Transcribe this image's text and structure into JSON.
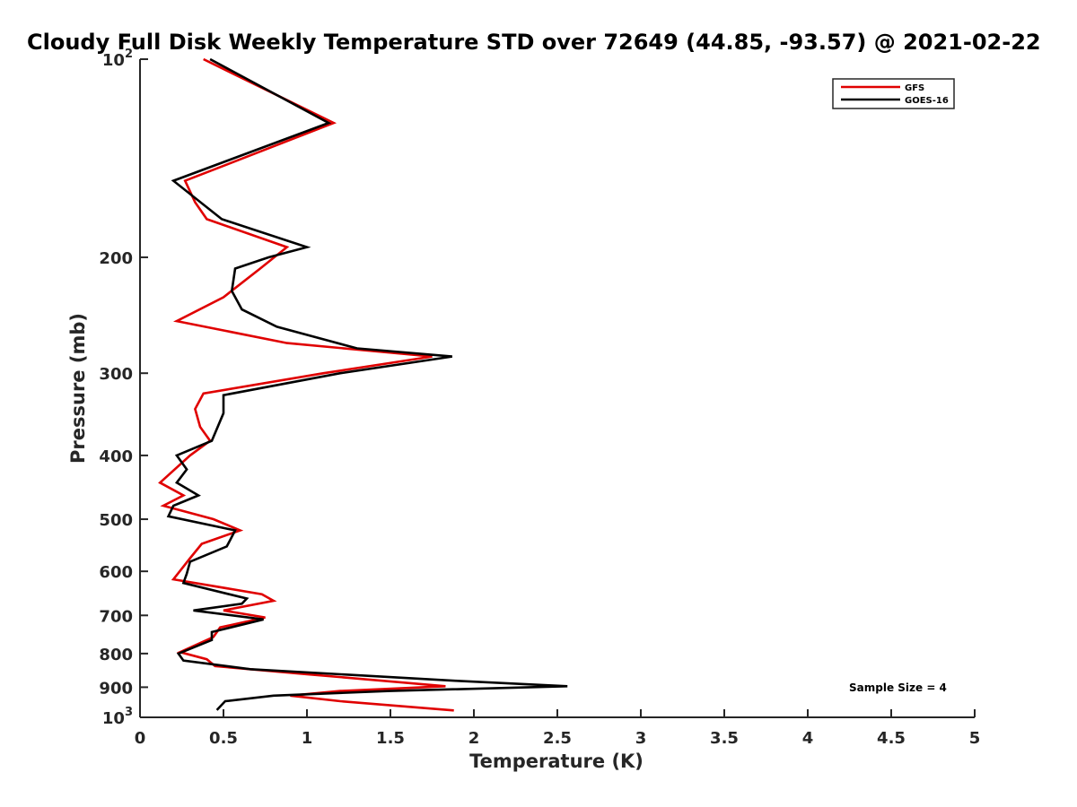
{
  "chart_data": {
    "type": "line",
    "title": "Cloudy Full Disk Weekly Temperature STD over 72649 (44.85, -93.57) @ 2021-02-22",
    "xlabel": "Temperature (K)",
    "ylabel": "Pressure (mb)",
    "xlim": [
      0,
      5
    ],
    "ylim": [
      1000,
      100
    ],
    "y_scale": "log",
    "y_reversed": true,
    "x_ticks": [
      0,
      0.5,
      1,
      1.5,
      2,
      2.5,
      3,
      3.5,
      4,
      4.5,
      5
    ],
    "x_tick_labels": [
      "0",
      "0.5",
      "1",
      "1.5",
      "2",
      "2.5",
      "3",
      "3.5",
      "4",
      "4.5",
      "5"
    ],
    "y_ticks": [
      100,
      200,
      300,
      400,
      500,
      600,
      700,
      800,
      900,
      1000
    ],
    "y_tick_labels": [
      {
        "base": "10",
        "exp": "2"
      },
      {
        "base": "200",
        "exp": ""
      },
      {
        "base": "300",
        "exp": ""
      },
      {
        "base": "400",
        "exp": ""
      },
      {
        "base": "500",
        "exp": ""
      },
      {
        "base": "600",
        "exp": ""
      },
      {
        "base": "700",
        "exp": ""
      },
      {
        "base": "800",
        "exp": ""
      },
      {
        "base": "900",
        "exp": ""
      },
      {
        "base": "10",
        "exp": "3"
      }
    ],
    "grid": false,
    "legend_position": "top-right",
    "annotation": "Sample Size = 4",
    "series": [
      {
        "name": "GFS",
        "color": "#e00000",
        "points": [
          [
            0.38,
            100
          ],
          [
            1.16,
            125
          ],
          [
            0.27,
            153
          ],
          [
            0.33,
            165
          ],
          [
            0.4,
            175
          ],
          [
            0.88,
            193
          ],
          [
            0.72,
            208
          ],
          [
            0.5,
            230
          ],
          [
            0.22,
            250
          ],
          [
            0.88,
            270
          ],
          [
            1.75,
            283
          ],
          [
            1.1,
            300
          ],
          [
            0.38,
            322
          ],
          [
            0.33,
            340
          ],
          [
            0.36,
            362
          ],
          [
            0.42,
            380
          ],
          [
            0.3,
            400
          ],
          [
            0.12,
            440
          ],
          [
            0.26,
            460
          ],
          [
            0.14,
            477
          ],
          [
            0.44,
            500
          ],
          [
            0.6,
            520
          ],
          [
            0.37,
            545
          ],
          [
            0.3,
            573
          ],
          [
            0.2,
            617
          ],
          [
            0.73,
            650
          ],
          [
            0.8,
            665
          ],
          [
            0.5,
            688
          ],
          [
            0.75,
            705
          ],
          [
            0.48,
            730
          ],
          [
            0.44,
            755
          ],
          [
            0.24,
            796
          ],
          [
            0.4,
            816
          ],
          [
            0.45,
            836
          ],
          [
            1.0,
            860
          ],
          [
            1.83,
            897
          ],
          [
            1.2,
            912
          ],
          [
            0.9,
            927
          ],
          [
            1.2,
            945
          ],
          [
            1.88,
            976
          ]
        ]
      },
      {
        "name": "GOES-16",
        "color": "#000000",
        "points": [
          [
            0.42,
            100
          ],
          [
            1.13,
            125
          ],
          [
            0.2,
            153
          ],
          [
            0.49,
            175
          ],
          [
            1.0,
            193
          ],
          [
            0.77,
            200
          ],
          [
            0.57,
            208
          ],
          [
            0.55,
            225
          ],
          [
            0.61,
            240
          ],
          [
            0.82,
            255
          ],
          [
            1.3,
            275
          ],
          [
            1.87,
            283
          ],
          [
            1.2,
            300
          ],
          [
            0.5,
            324
          ],
          [
            0.5,
            345
          ],
          [
            0.43,
            380
          ],
          [
            0.22,
            400
          ],
          [
            0.28,
            420
          ],
          [
            0.22,
            440
          ],
          [
            0.35,
            460
          ],
          [
            0.2,
            477
          ],
          [
            0.17,
            495
          ],
          [
            0.57,
            520
          ],
          [
            0.52,
            550
          ],
          [
            0.3,
            580
          ],
          [
            0.28,
            605
          ],
          [
            0.26,
            625
          ],
          [
            0.64,
            660
          ],
          [
            0.61,
            672
          ],
          [
            0.32,
            688
          ],
          [
            0.74,
            710
          ],
          [
            0.43,
            742
          ],
          [
            0.43,
            763
          ],
          [
            0.23,
            800
          ],
          [
            0.26,
            820
          ],
          [
            0.66,
            845
          ],
          [
            1.9,
            880
          ],
          [
            2.56,
            897
          ],
          [
            1.5,
            912
          ],
          [
            0.8,
            927
          ],
          [
            0.51,
            945
          ],
          [
            0.46,
            975
          ]
        ]
      }
    ]
  }
}
